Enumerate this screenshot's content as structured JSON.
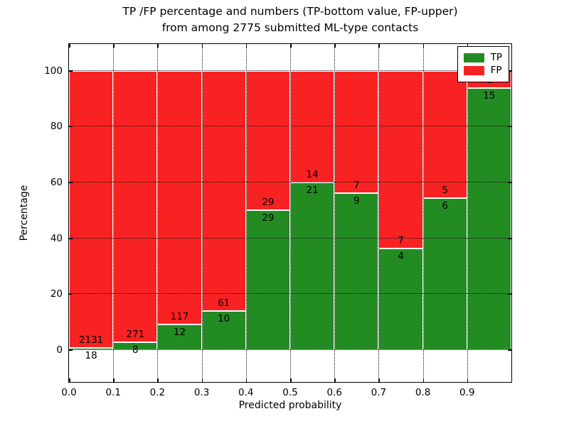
{
  "title": {
    "line1": "TP /FP percentage and numbers (TP-bottom value, FP-upper)",
    "line2": "from among 2775 submitted ML-type contacts"
  },
  "axes": {
    "xlabel": "Predicted probability",
    "ylabel": "Percentage",
    "xtick_labels": [
      "0.0",
      "0.1",
      "0.2",
      "0.3",
      "0.4",
      "0.5",
      "0.6",
      "0.7",
      "0.8",
      "0.9"
    ],
    "yticks": [
      0,
      20,
      40,
      60,
      80,
      100
    ]
  },
  "legend": {
    "items": [
      {
        "label": "TP",
        "color": "#228c22"
      },
      {
        "label": "FP",
        "color": "#f92222"
      }
    ]
  },
  "chart_data": {
    "type": "bar",
    "stacked": true,
    "normalized_to": 100,
    "title": "TP /FP percentage and numbers (TP-bottom value, FP-upper) from among 2775 submitted ML-type contacts",
    "xlabel": "Predicted probability",
    "ylabel": "Percentage",
    "bin_edges": [
      0.0,
      0.1,
      0.2,
      0.3,
      0.4,
      0.5,
      0.6,
      0.7,
      0.8,
      0.9,
      1.0
    ],
    "series": [
      {
        "name": "TP",
        "color": "#228c22",
        "counts": [
          18,
          8,
          12,
          10,
          29,
          21,
          9,
          4,
          6,
          15
        ]
      },
      {
        "name": "FP",
        "color": "#f92222",
        "counts": [
          2131,
          271,
          117,
          61,
          29,
          14,
          7,
          7,
          5,
          1
        ]
      }
    ],
    "total_contacts": 2775,
    "xlim": [
      0.0,
      1.0
    ],
    "ylim": [
      -11.4,
      109.6
    ],
    "grid": true,
    "legend_position": "upper right",
    "bar_edge_color": "#ffffff"
  }
}
